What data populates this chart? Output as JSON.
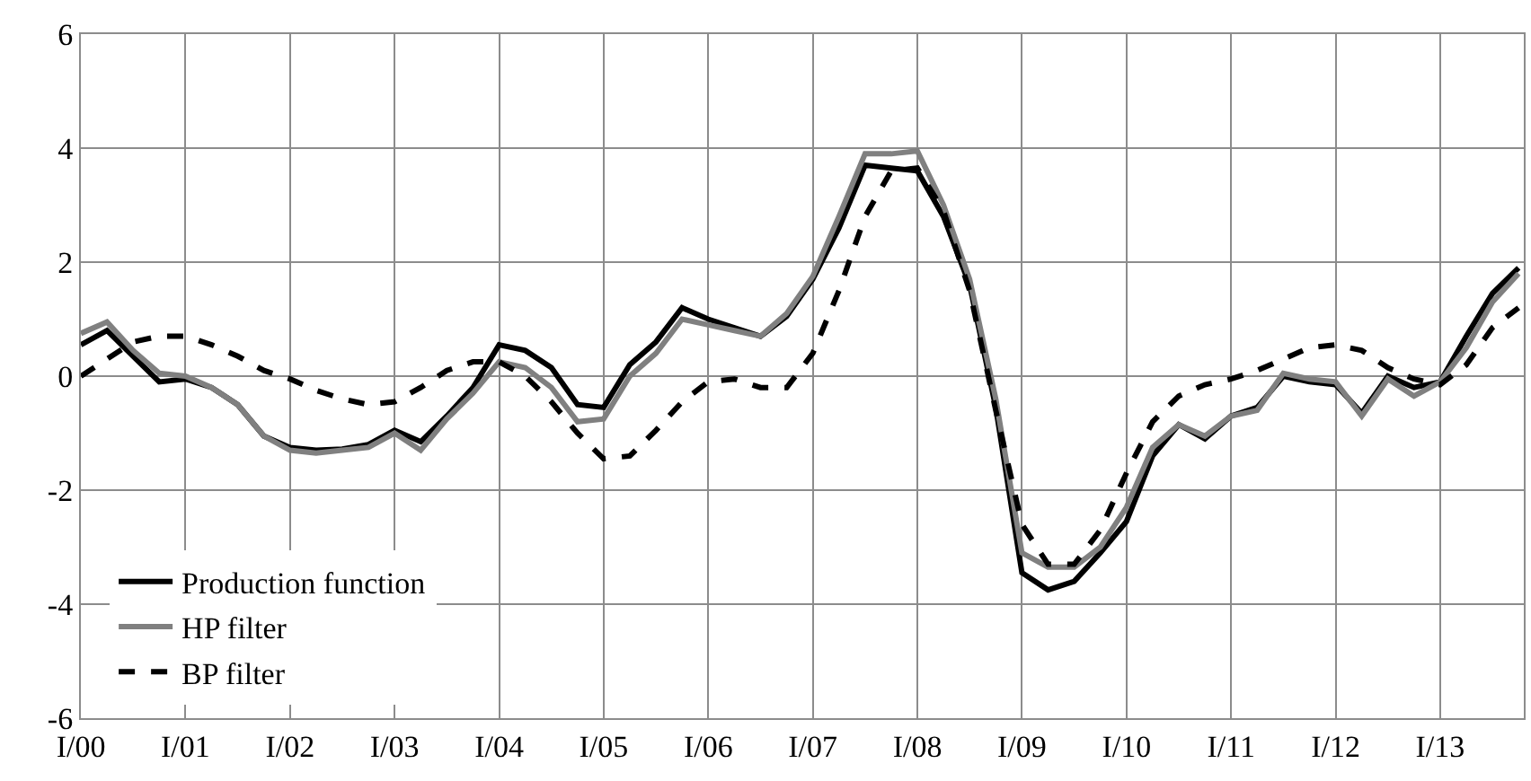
{
  "chart_data": {
    "type": "line",
    "categories": [
      "I/00",
      null,
      null,
      null,
      "I/01",
      null,
      null,
      null,
      "I/02",
      null,
      null,
      null,
      "I/03",
      null,
      null,
      null,
      "I/04",
      null,
      null,
      null,
      "I/05",
      null,
      null,
      null,
      "I/06",
      null,
      null,
      null,
      "I/07",
      null,
      null,
      null,
      "I/08",
      null,
      null,
      null,
      "I/09",
      null,
      null,
      null,
      "I/10",
      null,
      null,
      null,
      "I/11",
      null,
      null,
      null,
      "I/12",
      null,
      null,
      null,
      "I/13",
      null,
      null,
      null
    ],
    "ylim": [
      -6,
      6
    ],
    "yticks": [
      -6,
      -4,
      -2,
      0,
      2,
      4,
      6
    ],
    "grid": true,
    "legend": "bottom left",
    "marker": "none",
    "series": [
      {
        "name": "Production function",
        "color": "#000000",
        "line_style": "solid",
        "values": [
          0.55,
          0.8,
          0.35,
          -0.1,
          -0.05,
          -0.2,
          -0.5,
          -1.05,
          -1.25,
          -1.3,
          -1.28,
          -1.2,
          -0.95,
          -1.15,
          -0.7,
          -0.2,
          0.55,
          0.45,
          0.15,
          -0.5,
          -0.55,
          0.2,
          0.6,
          1.2,
          1.0,
          0.85,
          0.7,
          1.05,
          1.7,
          2.6,
          3.7,
          3.65,
          3.6,
          2.8,
          1.6,
          -0.55,
          -3.45,
          -3.75,
          -3.6,
          -3.1,
          -2.55,
          -1.4,
          -0.85,
          -1.1,
          -0.7,
          -0.55,
          0.0,
          -0.1,
          -0.15,
          -0.65,
          0.0,
          -0.2,
          -0.1,
          0.7,
          1.45,
          1.9
        ]
      },
      {
        "name": "HP filter",
        "color": "#808080",
        "line_style": "solid",
        "values": [
          0.75,
          0.95,
          0.45,
          0.05,
          0.0,
          -0.2,
          -0.5,
          -1.05,
          -1.3,
          -1.35,
          -1.3,
          -1.25,
          -1.0,
          -1.3,
          -0.75,
          -0.3,
          0.25,
          0.15,
          -0.2,
          -0.8,
          -0.75,
          0.0,
          0.4,
          1.0,
          0.9,
          0.8,
          0.7,
          1.1,
          1.75,
          2.8,
          3.9,
          3.9,
          3.95,
          3.0,
          1.7,
          -0.4,
          -3.1,
          -3.35,
          -3.35,
          -3.0,
          -2.3,
          -1.25,
          -0.85,
          -1.05,
          -0.7,
          -0.6,
          0.05,
          -0.05,
          -0.1,
          -0.7,
          -0.05,
          -0.35,
          -0.1,
          0.5,
          1.3,
          1.8
        ]
      },
      {
        "name": "BP filter",
        "color": "#000000",
        "line_style": "dashed",
        "values": [
          0.0,
          0.3,
          0.6,
          0.7,
          0.7,
          0.55,
          0.35,
          0.1,
          -0.05,
          -0.25,
          -0.4,
          -0.5,
          -0.45,
          -0.2,
          0.1,
          0.25,
          0.25,
          0.0,
          -0.45,
          -1.0,
          -1.45,
          -1.4,
          -0.95,
          -0.45,
          -0.1,
          -0.05,
          -0.2,
          -0.2,
          0.4,
          1.5,
          2.8,
          3.6,
          3.65,
          2.9,
          1.5,
          -0.6,
          -2.6,
          -3.3,
          -3.3,
          -2.7,
          -1.7,
          -0.8,
          -0.35,
          -0.15,
          -0.05,
          0.1,
          0.3,
          0.5,
          0.55,
          0.45,
          0.15,
          -0.05,
          -0.15,
          0.2,
          0.85,
          1.2
        ]
      }
    ]
  }
}
